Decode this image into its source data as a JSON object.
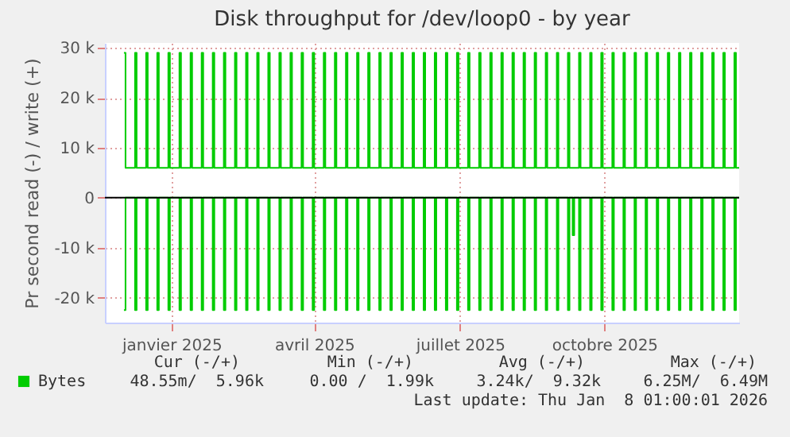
{
  "chart_data": {
    "type": "step",
    "title": "Disk throughput for /dev/loop0 - by year",
    "ylabel": "Pr second read (-) / write (+)",
    "x": [
      "2024-12-16",
      "2024-12-17",
      "2024-12-23",
      "2024-12-24",
      "2024-12-30",
      "2024-12-31",
      "2025-01-06",
      "2025-01-07",
      "2025-01-13",
      "2025-01-14",
      "2025-01-20",
      "2025-01-21",
      "2025-01-27",
      "2025-01-28",
      "2025-02-03",
      "2025-02-04",
      "2025-02-10",
      "2025-02-11",
      "2025-02-17",
      "2025-02-18",
      "2025-02-24",
      "2025-02-25",
      "2025-03-03",
      "2025-03-04",
      "2025-03-10",
      "2025-03-11",
      "2025-03-17",
      "2025-03-18",
      "2025-03-24",
      "2025-03-25",
      "2025-03-31",
      "2025-04-01",
      "2025-04-07",
      "2025-04-08",
      "2025-04-14",
      "2025-04-15",
      "2025-04-21",
      "2025-04-22",
      "2025-04-28",
      "2025-04-29",
      "2025-05-05",
      "2025-05-06",
      "2025-05-12",
      "2025-05-13",
      "2025-05-19",
      "2025-05-20",
      "2025-05-26",
      "2025-05-27",
      "2025-06-02",
      "2025-06-03",
      "2025-06-09",
      "2025-06-10",
      "2025-06-16",
      "2025-06-17",
      "2025-06-23",
      "2025-06-24",
      "2025-06-30",
      "2025-07-01",
      "2025-07-07",
      "2025-07-08",
      "2025-07-14",
      "2025-07-15",
      "2025-07-21",
      "2025-07-22",
      "2025-07-28",
      "2025-07-29",
      "2025-08-04",
      "2025-08-05",
      "2025-08-11",
      "2025-08-12",
      "2025-08-18",
      "2025-08-19",
      "2025-08-25",
      "2025-08-26",
      "2025-09-01",
      "2025-09-02",
      "2025-09-08",
      "2025-09-09",
      "2025-09-15",
      "2025-09-16",
      "2025-09-22",
      "2025-09-23",
      "2025-09-25",
      "2025-09-26",
      "2025-09-29",
      "2025-09-30",
      "2025-10-06",
      "2025-10-07",
      "2025-10-13",
      "2025-10-14",
      "2025-10-20",
      "2025-10-21",
      "2025-10-27",
      "2025-10-28",
      "2025-11-03",
      "2025-11-04",
      "2025-11-10",
      "2025-11-11",
      "2025-11-17",
      "2025-11-18",
      "2025-11-24",
      "2025-11-25",
      "2025-12-01",
      "2025-12-02",
      "2025-12-08",
      "2025-12-09",
      "2025-12-15",
      "2025-12-16",
      "2025-12-22",
      "2025-12-23",
      "2025-12-29",
      "2025-12-30",
      "2026-01-05",
      "2026-01-06",
      "2026-01-08"
    ],
    "series": [
      {
        "name": "Bytes",
        "color": "#00cc00",
        "values": [
          29000,
          6000,
          29000,
          6000,
          29000,
          6000,
          29000,
          6000,
          29000,
          6000,
          29000,
          6000,
          29000,
          6000,
          29000,
          6000,
          29000,
          6000,
          29000,
          6000,
          29000,
          6000,
          29000,
          6000,
          29000,
          6000,
          29000,
          6000,
          29000,
          6000,
          29000,
          6000,
          29000,
          6000,
          29000,
          6000,
          29000,
          6000,
          29000,
          6000,
          29000,
          6000,
          29000,
          6000,
          29000,
          6000,
          29000,
          6000,
          29000,
          6000,
          29000,
          6000,
          29000,
          6000,
          29000,
          6000,
          29000,
          6000,
          29000,
          6000,
          29000,
          6000,
          29000,
          6000,
          29000,
          6000,
          29000,
          6000,
          29000,
          6000,
          29000,
          6000,
          29000,
          6000,
          29000,
          6000,
          29000,
          6000,
          29000,
          6000,
          29000,
          6000,
          6000,
          6000,
          29000,
          6000,
          29000,
          6000,
          29000,
          6000,
          29000,
          6000,
          29000,
          6000,
          29000,
          6000,
          29000,
          6000,
          29000,
          6000,
          29000,
          6000,
          29000,
          6000,
          29000,
          6000,
          29000,
          6000,
          29000,
          6000,
          29000,
          6000,
          29000,
          6000,
          6000
        ]
      },
      {
        "color": "#00cc00",
        "values": [
          -22500,
          0,
          -22500,
          0,
          -22500,
          0,
          -22500,
          0,
          -22500,
          0,
          -22500,
          0,
          -22500,
          0,
          -22500,
          0,
          -22500,
          0,
          -22500,
          0,
          -22500,
          0,
          -22500,
          0,
          -22500,
          0,
          -22500,
          0,
          -22500,
          0,
          -22500,
          0,
          -22500,
          0,
          -22500,
          0,
          -22500,
          0,
          -22500,
          0,
          -22500,
          0,
          -22500,
          0,
          -22500,
          0,
          -22500,
          0,
          -22500,
          0,
          -22500,
          0,
          -22500,
          0,
          -22500,
          0,
          -22500,
          0,
          -22500,
          0,
          -22500,
          0,
          -22500,
          0,
          -22500,
          0,
          -22500,
          0,
          -22500,
          0,
          -22500,
          0,
          -22500,
          0,
          -22500,
          0,
          -22500,
          0,
          -22500,
          0,
          -22500,
          0,
          -7500,
          0,
          -22500,
          0,
          -22500,
          0,
          -22500,
          0,
          -22500,
          0,
          -22500,
          0,
          -22500,
          0,
          -22500,
          0,
          -22500,
          0,
          -22500,
          0,
          -22500,
          0,
          -22500,
          0,
          -22500,
          0,
          -22500,
          0,
          -22500,
          0,
          -22500,
          0,
          0
        ]
      }
    ],
    "xlim": [
      "2024-12-04",
      "2026-01-08"
    ],
    "xticks": [
      {
        "value": "2025-01-15",
        "label": "janvier 2025"
      },
      {
        "value": "2025-04-15",
        "label": "avril 2025"
      },
      {
        "value": "2025-07-16",
        "label": "juillet 2025"
      },
      {
        "value": "2025-10-15",
        "label": "octobre 2025"
      }
    ],
    "ylim": [
      -25000,
      31000
    ],
    "yticks": [
      {
        "value": -20000,
        "label": "-20 k"
      },
      {
        "value": -10000,
        "label": "-10 k"
      },
      0,
      {
        "value": 10000,
        "label": "10 k"
      },
      {
        "value": 20000,
        "label": "20 k"
      },
      {
        "value": 30000,
        "label": "30 k"
      }
    ],
    "grid": true,
    "legend": "bottom left",
    "ref_lines": [
      {
        "axis": "y",
        "value": 0,
        "color": "#000000"
      }
    ],
    "annotations": [
      "Cur (-/+)",
      "Min (-/+)",
      "Avg (-/+)",
      "Max (-/+)",
      "48.55m/  5.96k",
      "0.00 /  1.99k",
      "3.24k/  9.32k",
      "6.25M/  6.49M",
      "Last update: Thu Jan  8 01:00:01 2026"
    ]
  }
}
